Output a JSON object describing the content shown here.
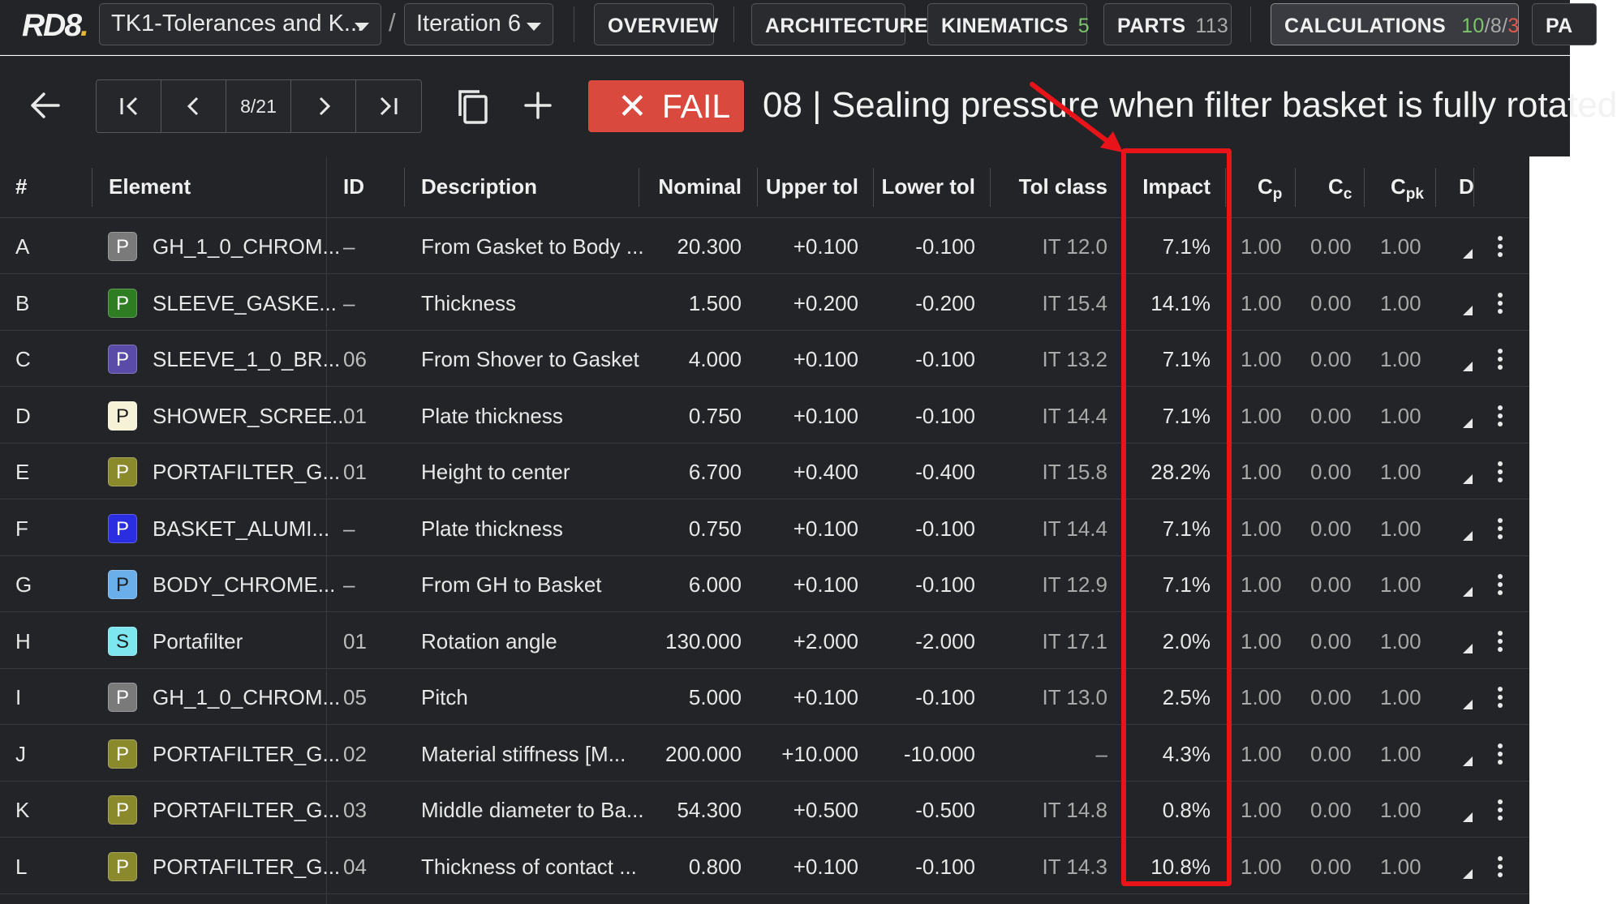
{
  "nav": {
    "logo": "RD8",
    "project": "TK1-Tolerances and K...",
    "crumb_separator": "/",
    "iteration": "Iteration 6",
    "tabs": {
      "overview": {
        "label": "OVERVIEW"
      },
      "architecture": {
        "label": "ARCHITECTURE"
      },
      "kinematics": {
        "label": "KINEMATICS",
        "count": "5"
      },
      "parts": {
        "label": "PARTS",
        "count": "113"
      },
      "calculations": {
        "label": "CALCULATIONS",
        "count_pass": "10",
        "sep1": "/",
        "count_total": "8",
        "sep2": "/",
        "count_fail": "3"
      },
      "overflow": {
        "label": "PA"
      }
    }
  },
  "toolbar": {
    "pager": "8/21",
    "status": "FAIL",
    "title": "08 | Sealing pressure when filter basket is fully rotated"
  },
  "table": {
    "headers": {
      "index": "#",
      "element": "Element",
      "id": "ID",
      "description": "Description",
      "nominal": "Nominal",
      "upper_tol": "Upper tol",
      "lower_tol": "Lower tol",
      "tol_class": "Tol class",
      "impact": "Impact",
      "cp": "C",
      "cp_sub": "p",
      "cc": "C",
      "cc_sub": "c",
      "cpk": "C",
      "cpk_sub": "pk",
      "d": "D"
    },
    "rows": [
      {
        "letter": "A",
        "type": "P",
        "color": "#7a7a7a",
        "element": "GH_1_0_CHROM...",
        "id": "–",
        "description": "From Gasket to Body ...",
        "nominal": "20.300",
        "upper": "+0.100",
        "lower": "-0.100",
        "tol_class": "IT 12.0",
        "impact": "7.1%",
        "cp": "1.00",
        "cc": "0.00",
        "cpk": "1.00"
      },
      {
        "letter": "B",
        "type": "P",
        "color": "#2e7d22",
        "element": "SLEEVE_GASKE...",
        "id": "–",
        "description": "Thickness",
        "nominal": "1.500",
        "upper": "+0.200",
        "lower": "-0.200",
        "tol_class": "IT 15.4",
        "impact": "14.1%",
        "cp": "1.00",
        "cc": "0.00",
        "cpk": "1.00"
      },
      {
        "letter": "C",
        "type": "P",
        "color": "#5a4ba8",
        "element": "SLEEVE_1_0_BR...",
        "id": "06",
        "description": "From Shover to Gasket",
        "nominal": "4.000",
        "upper": "+0.100",
        "lower": "-0.100",
        "tol_class": "IT 13.2",
        "impact": "7.1%",
        "cp": "1.00",
        "cc": "0.00",
        "cpk": "1.00"
      },
      {
        "letter": "D",
        "type": "P",
        "color": "#f6f2d8",
        "element": "SHOWER_SCREE...",
        "id": "01",
        "description": "Plate thickness",
        "nominal": "0.750",
        "upper": "+0.100",
        "lower": "-0.100",
        "tol_class": "IT 14.4",
        "impact": "7.1%",
        "cp": "1.00",
        "cc": "0.00",
        "cpk": "1.00"
      },
      {
        "letter": "E",
        "type": "P",
        "color": "#8a8a2c",
        "element": "PORTAFILTER_G...",
        "id": "01",
        "description": "Height to center",
        "nominal": "6.700",
        "upper": "+0.400",
        "lower": "-0.400",
        "tol_class": "IT 15.8",
        "impact": "28.2%",
        "cp": "1.00",
        "cc": "0.00",
        "cpk": "1.00"
      },
      {
        "letter": "F",
        "type": "P",
        "color": "#2a2ee0",
        "element": "BASKET_ALUMI...",
        "id": "–",
        "description": "Plate thickness",
        "nominal": "0.750",
        "upper": "+0.100",
        "lower": "-0.100",
        "tol_class": "IT 14.4",
        "impact": "7.1%",
        "cp": "1.00",
        "cc": "0.00",
        "cpk": "1.00"
      },
      {
        "letter": "G",
        "type": "P",
        "color": "#6aaeea",
        "element": "BODY_CHROME...",
        "id": "–",
        "description": "From GH to Basket",
        "nominal": "6.000",
        "upper": "+0.100",
        "lower": "-0.100",
        "tol_class": "IT 12.9",
        "impact": "7.1%",
        "cp": "1.00",
        "cc": "0.00",
        "cpk": "1.00"
      },
      {
        "letter": "H",
        "type": "S",
        "color": "#7ee6ef",
        "element": "Portafilter",
        "id": "01",
        "description": "Rotation angle",
        "nominal": "130.000",
        "upper": "+2.000",
        "lower": "-2.000",
        "tol_class": "IT 17.1",
        "impact": "2.0%",
        "cp": "1.00",
        "cc": "0.00",
        "cpk": "1.00"
      },
      {
        "letter": "I",
        "type": "P",
        "color": "#7a7a7a",
        "element": "GH_1_0_CHROM...",
        "id": "05",
        "description": "Pitch",
        "nominal": "5.000",
        "upper": "+0.100",
        "lower": "-0.100",
        "tol_class": "IT 13.0",
        "impact": "2.5%",
        "cp": "1.00",
        "cc": "0.00",
        "cpk": "1.00"
      },
      {
        "letter": "J",
        "type": "P",
        "color": "#8a8a2c",
        "element": "PORTAFILTER_G...",
        "id": "02",
        "description": "Material stiffness [M...",
        "nominal": "200.000",
        "upper": "+10.000",
        "lower": "-10.000",
        "tol_class": "–",
        "impact": "4.3%",
        "cp": "1.00",
        "cc": "0.00",
        "cpk": "1.00"
      },
      {
        "letter": "K",
        "type": "P",
        "color": "#8a8a2c",
        "element": "PORTAFILTER_G...",
        "id": "03",
        "description": "Middle diameter to Ba...",
        "nominal": "54.300",
        "upper": "+0.500",
        "lower": "-0.500",
        "tol_class": "IT 14.8",
        "impact": "0.8%",
        "cp": "1.00",
        "cc": "0.00",
        "cpk": "1.00"
      },
      {
        "letter": "L",
        "type": "P",
        "color": "#8a8a2c",
        "element": "PORTAFILTER_G...",
        "id": "04",
        "description": "Thickness of contact ...",
        "nominal": "0.800",
        "upper": "+0.100",
        "lower": "-0.100",
        "tol_class": "IT 14.3",
        "impact": "10.8%",
        "cp": "1.00",
        "cc": "0.00",
        "cpk": "1.00"
      }
    ]
  },
  "colors": {
    "background": "#232427",
    "fail": "#d9493d",
    "highlight": "#e8141a",
    "pass_count": "#7bc56a"
  }
}
